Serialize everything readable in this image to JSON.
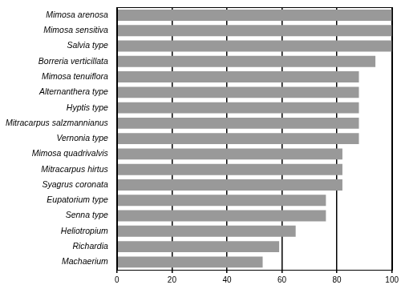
{
  "chart_data": {
    "type": "bar",
    "orientation": "horizontal",
    "categories": [
      "Machaerium",
      "Richardia",
      "Heliotropium",
      "Senna type",
      "Eupatorium type",
      "Syagrus coronata",
      "Mitracarpus hirtus",
      "Mimosa quadrivalvis",
      "Vernonia type",
      "Mitracarpus salzmannianus",
      "Hyptis type",
      "Alternanthera type",
      "Mimosa tenuiflora",
      "Borreria verticillata",
      "Salvia type",
      "Mimosa sensitiva",
      "Mimosa arenosa"
    ],
    "values": [
      53,
      59,
      65,
      76,
      76,
      82,
      82,
      82,
      88,
      88,
      88,
      88,
      88,
      94,
      100,
      100,
      100
    ],
    "color": "#999999",
    "xlim": [
      0,
      100
    ],
    "xticks": [
      0,
      20,
      40,
      60,
      80,
      100
    ],
    "grid": true
  }
}
